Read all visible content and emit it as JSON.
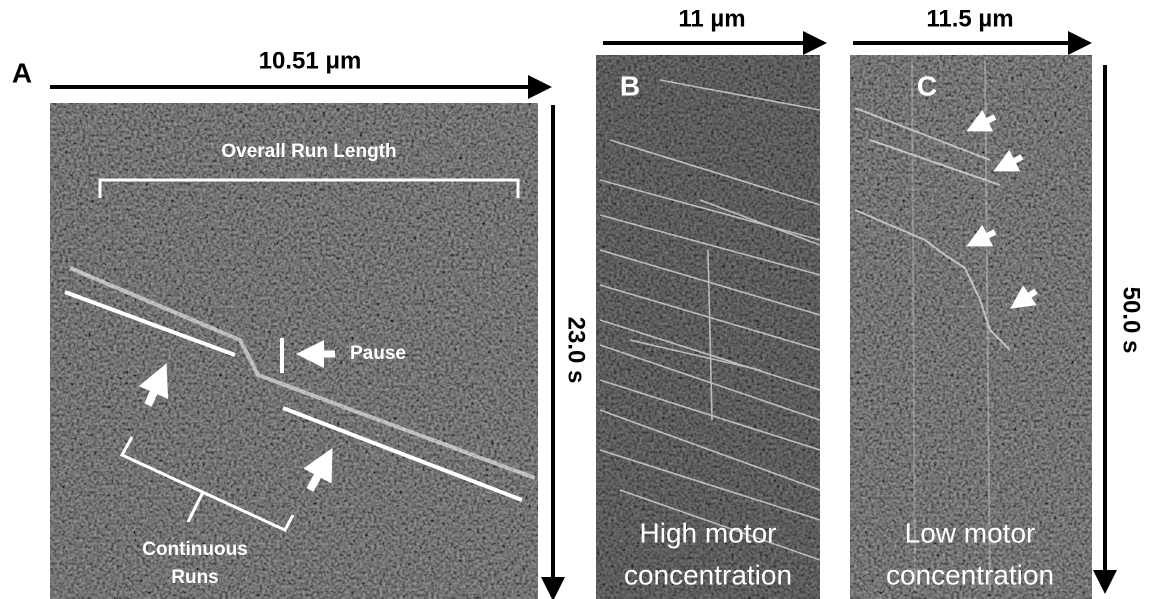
{
  "panel_a": {
    "label": "A",
    "x_axis_label": "10.51 μm",
    "y_axis_label": "23.0 s",
    "overall_run_length": "Overall Run Length",
    "pause": "Pause",
    "continuous_runs": [
      "Continuous",
      "Runs"
    ]
  },
  "panel_b": {
    "label": "B",
    "x_axis_label": "11 µm",
    "caption": [
      "High motor",
      "concentration"
    ]
  },
  "panel_c": {
    "label": "C",
    "x_axis_label": "11.5 µm",
    "y_axis_label": "50.0 s",
    "caption": [
      "Low motor",
      "concentration"
    ]
  }
}
